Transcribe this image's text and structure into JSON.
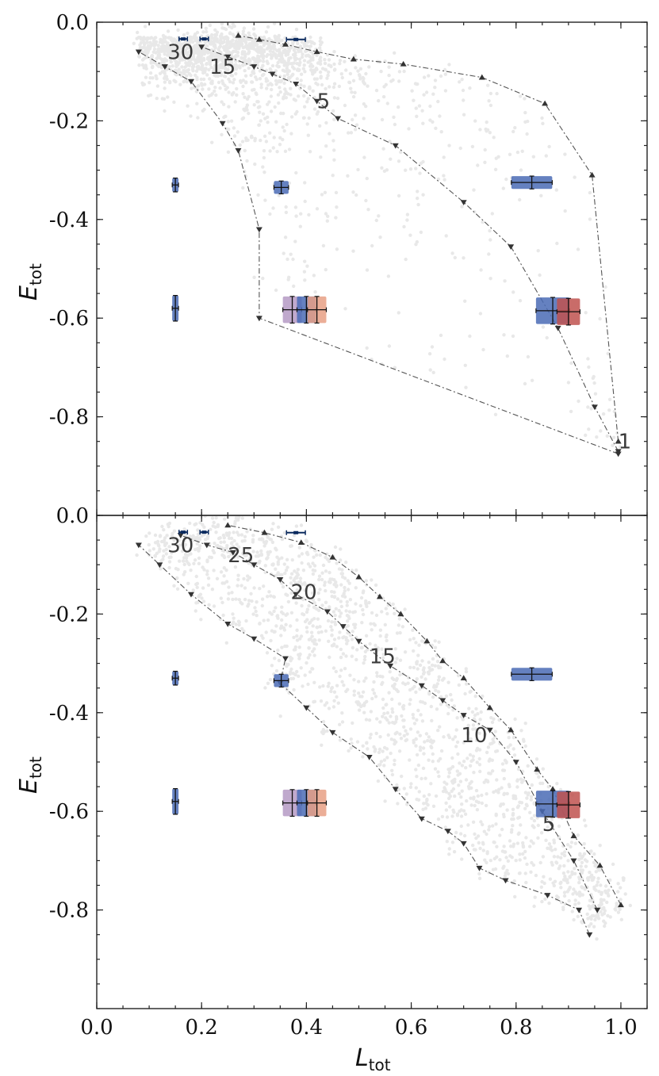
{
  "chart_data": [
    {
      "type": "scatter",
      "panel": "top",
      "title": "",
      "xlabel_main": "L",
      "xlabel_sub": "tot",
      "ylabel_main": "E",
      "ylabel_sub": "tot",
      "xlim": [
        0.0,
        1.05
      ],
      "ylim": [
        -1.0,
        0.0
      ],
      "yticks": [
        0.0,
        -0.2,
        -0.4,
        -0.6,
        -0.8
      ],
      "ytick_labels": [
        "0.0",
        "-0.2",
        "-0.4",
        "-0.6",
        "-0.8"
      ],
      "show_xtick_labels": false,
      "xticks": [
        0.0,
        0.2,
        0.4,
        0.6,
        0.8,
        1.0
      ],
      "xtick_labels": [
        "0.0",
        "0.2",
        "0.4",
        "0.6",
        "0.8",
        "1.0"
      ],
      "tracks": [
        {
          "name": "track-outer",
          "marker": "up",
          "points": [
            [
              0.995,
              -0.85
            ],
            [
              0.945,
              -0.31
            ],
            [
              0.855,
              -0.165
            ],
            [
              0.735,
              -0.112
            ],
            [
              0.585,
              -0.085
            ],
            [
              0.49,
              -0.075
            ],
            [
              0.42,
              -0.06
            ],
            [
              0.36,
              -0.045
            ],
            [
              0.31,
              -0.035
            ],
            [
              0.27,
              -0.027
            ]
          ]
        },
        {
          "name": "track-middle",
          "marker": "down",
          "points": [
            [
              0.995,
              -0.87
            ],
            [
              0.95,
              -0.78
            ],
            [
              0.88,
              -0.62
            ],
            [
              0.79,
              -0.455
            ],
            [
              0.7,
              -0.365
            ],
            [
              0.57,
              -0.25
            ],
            [
              0.46,
              -0.195
            ],
            [
              0.42,
              -0.16
            ],
            [
              0.38,
              -0.125
            ],
            [
              0.335,
              -0.105
            ],
            [
              0.3,
              -0.09
            ],
            [
              0.25,
              -0.07
            ],
            [
              0.2,
              -0.05
            ]
          ]
        },
        {
          "name": "track-inner",
          "marker": "down",
          "points": [
            [
              0.995,
              -0.875
            ],
            [
              0.31,
              -0.6
            ],
            [
              0.31,
              -0.42
            ],
            [
              0.27,
              -0.26
            ],
            [
              0.24,
              -0.205
            ],
            [
              0.18,
              -0.12
            ],
            [
              0.13,
              -0.09
            ],
            [
              0.08,
              -0.06
            ]
          ]
        }
      ],
      "track_labels": [
        {
          "text": "30",
          "x": 0.135,
          "y": -0.06
        },
        {
          "text": "15",
          "x": 0.215,
          "y": -0.09
        },
        {
          "text": "5",
          "x": 0.42,
          "y": -0.16
        },
        {
          "text": "1",
          "x": 0.995,
          "y": -0.85
        }
      ],
      "boxes": [
        {
          "color": "#4a6bb5",
          "x": 0.15,
          "y": -0.33,
          "xerr": 0.006,
          "yerr": 0.014
        },
        {
          "color": "#4a6bb5",
          "x": 0.352,
          "y": -0.335,
          "xerr": 0.014,
          "yerr": 0.013
        },
        {
          "color": "#4a6bb5",
          "x": 0.83,
          "y": -0.325,
          "xerr": 0.039,
          "yerr": 0.013
        },
        {
          "color": "#4a6bb5",
          "x": 0.15,
          "y": -0.58,
          "xerr": 0.006,
          "yerr": 0.026
        },
        {
          "color": "#b59ac4",
          "x": 0.373,
          "y": -0.583,
          "xerr": 0.018,
          "yerr": 0.027
        },
        {
          "color": "#4a6bb5",
          "x": 0.4,
          "y": -0.583,
          "xerr": 0.018,
          "yerr": 0.027
        },
        {
          "color": "#e8a085",
          "x": 0.42,
          "y": -0.583,
          "xerr": 0.018,
          "yerr": 0.027
        },
        {
          "color": "#4a6bb5",
          "x": 0.87,
          "y": -0.585,
          "xerr": 0.032,
          "yerr": 0.027
        },
        {
          "color": "#c0524f",
          "x": 0.9,
          "y": -0.587,
          "xerr": 0.022,
          "yerr": 0.027
        }
      ],
      "small_errorbars": [
        {
          "x": 0.165,
          "y": -0.034,
          "xerr": 0.008
        },
        {
          "x": 0.205,
          "y": -0.034,
          "xerr": 0.008
        },
        {
          "x": 0.38,
          "y": -0.035,
          "xerr": 0.018
        }
      ]
    },
    {
      "type": "scatter",
      "panel": "bottom",
      "title": "",
      "xlabel_main": "L",
      "xlabel_sub": "tot",
      "ylabel_main": "E",
      "ylabel_sub": "tot",
      "xlim": [
        0.0,
        1.05
      ],
      "ylim": [
        -1.0,
        0.0
      ],
      "yticks": [
        0.0,
        -0.2,
        -0.4,
        -0.6,
        -0.8
      ],
      "ytick_labels": [
        "0.0",
        "-0.2",
        "-0.4",
        "-0.6",
        "-0.8"
      ],
      "show_xtick_labels": true,
      "xticks": [
        0.0,
        0.2,
        0.4,
        0.6,
        0.8,
        1.0
      ],
      "xtick_labels": [
        "0.0",
        "0.2",
        "0.4",
        "0.6",
        "0.8",
        "1.0"
      ],
      "tracks": [
        {
          "name": "track-outer",
          "marker": "up",
          "points": [
            [
              1.0,
              -0.79
            ],
            [
              0.96,
              -0.71
            ],
            [
              0.91,
              -0.65
            ],
            [
              0.87,
              -0.555
            ],
            [
              0.84,
              -0.515
            ],
            [
              0.79,
              -0.435
            ],
            [
              0.75,
              -0.39
            ],
            [
              0.7,
              -0.33
            ],
            [
              0.66,
              -0.295
            ],
            [
              0.63,
              -0.255
            ],
            [
              0.58,
              -0.2
            ],
            [
              0.54,
              -0.165
            ],
            [
              0.5,
              -0.125
            ],
            [
              0.45,
              -0.085
            ],
            [
              0.39,
              -0.055
            ],
            [
              0.32,
              -0.035
            ],
            [
              0.25,
              -0.02
            ]
          ]
        },
        {
          "name": "track-middle",
          "marker": "down",
          "points": [
            [
              0.955,
              -0.8
            ],
            [
              0.91,
              -0.7
            ],
            [
              0.85,
              -0.6
            ],
            [
              0.8,
              -0.5
            ],
            [
              0.75,
              -0.435
            ],
            [
              0.7,
              -0.405
            ],
            [
              0.66,
              -0.375
            ],
            [
              0.62,
              -0.345
            ],
            [
              0.56,
              -0.305
            ],
            [
              0.5,
              -0.255
            ],
            [
              0.47,
              -0.225
            ],
            [
              0.44,
              -0.195
            ],
            [
              0.38,
              -0.16
            ],
            [
              0.35,
              -0.13
            ],
            [
              0.3,
              -0.1
            ],
            [
              0.26,
              -0.075
            ],
            [
              0.21,
              -0.06
            ],
            [
              0.16,
              -0.04
            ]
          ]
        },
        {
          "name": "track-inner",
          "marker": "down",
          "points": [
            [
              0.94,
              -0.85
            ],
            [
              0.92,
              -0.8
            ],
            [
              0.86,
              -0.77
            ],
            [
              0.78,
              -0.74
            ],
            [
              0.73,
              -0.715
            ],
            [
              0.7,
              -0.665
            ],
            [
              0.67,
              -0.64
            ],
            [
              0.62,
              -0.615
            ],
            [
              0.57,
              -0.555
            ],
            [
              0.52,
              -0.49
            ],
            [
              0.45,
              -0.44
            ],
            [
              0.4,
              -0.39
            ],
            [
              0.35,
              -0.34
            ],
            [
              0.36,
              -0.29
            ],
            [
              0.3,
              -0.25
            ],
            [
              0.25,
              -0.22
            ],
            [
              0.18,
              -0.16
            ],
            [
              0.12,
              -0.1
            ],
            [
              0.08,
              -0.06
            ]
          ]
        }
      ],
      "track_labels": [
        {
          "text": "30",
          "x": 0.135,
          "y": -0.06
        },
        {
          "text": "25",
          "x": 0.25,
          "y": -0.08
        },
        {
          "text": "20",
          "x": 0.37,
          "y": -0.155
        },
        {
          "text": "15",
          "x": 0.52,
          "y": -0.285
        },
        {
          "text": "10",
          "x": 0.695,
          "y": -0.445
        },
        {
          "text": "5",
          "x": 0.85,
          "y": -0.625
        }
      ],
      "boxes": [
        {
          "color": "#4a6bb5",
          "x": 0.15,
          "y": -0.33,
          "xerr": 0.006,
          "yerr": 0.014
        },
        {
          "color": "#4a6bb5",
          "x": 0.352,
          "y": -0.335,
          "xerr": 0.014,
          "yerr": 0.013
        },
        {
          "color": "#4a6bb5",
          "x": 0.83,
          "y": -0.322,
          "xerr": 0.039,
          "yerr": 0.013
        },
        {
          "color": "#4a6bb5",
          "x": 0.15,
          "y": -0.58,
          "xerr": 0.006,
          "yerr": 0.026
        },
        {
          "color": "#b59ac4",
          "x": 0.373,
          "y": -0.583,
          "xerr": 0.018,
          "yerr": 0.027
        },
        {
          "color": "#4a6bb5",
          "x": 0.4,
          "y": -0.583,
          "xerr": 0.018,
          "yerr": 0.027
        },
        {
          "color": "#e8a085",
          "x": 0.42,
          "y": -0.583,
          "xerr": 0.018,
          "yerr": 0.027
        },
        {
          "color": "#4a6bb5",
          "x": 0.87,
          "y": -0.585,
          "xerr": 0.032,
          "yerr": 0.027
        },
        {
          "color": "#c0524f",
          "x": 0.9,
          "y": -0.587,
          "xerr": 0.022,
          "yerr": 0.027
        }
      ],
      "small_errorbars": [
        {
          "x": 0.165,
          "y": -0.034,
          "xerr": 0.008
        },
        {
          "x": 0.205,
          "y": -0.034,
          "xerr": 0.008
        },
        {
          "x": 0.38,
          "y": -0.035,
          "xerr": 0.018
        }
      ]
    }
  ],
  "colors": {
    "scatter": "#9a9a9a",
    "track": "#555555",
    "errorbar": "#0b2a5e",
    "crosshair": "#111111"
  }
}
